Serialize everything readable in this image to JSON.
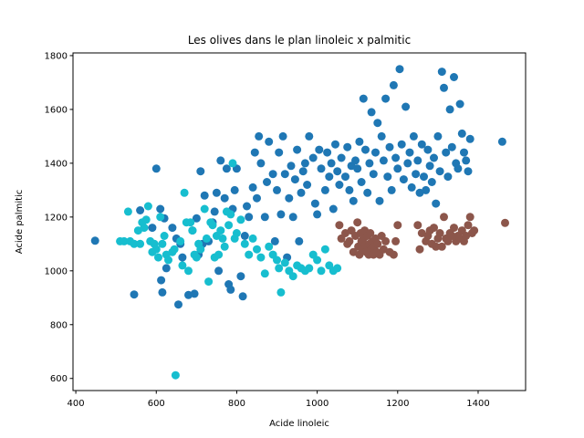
{
  "chart_data": {
    "type": "scatter",
    "title": "Les olives dans le plan linoleic x palmitic",
    "xlabel": "Acide linoleic",
    "ylabel": "Acide palmitic",
    "xlim": [
      393,
      1518
    ],
    "ylim": [
      555,
      1810
    ],
    "xticks": [
      400,
      600,
      800,
      1000,
      1200,
      1400
    ],
    "yticks": [
      600,
      800,
      1000,
      1200,
      1400,
      1600,
      1800
    ],
    "grid": false,
    "legend": "none",
    "series": [
      {
        "color": "#1f77b4",
        "points": [
          [
            448,
            1112
          ],
          [
            545,
            912
          ],
          [
            560,
            1225
          ],
          [
            590,
            1160
          ],
          [
            600,
            1380
          ],
          [
            610,
            1230
          ],
          [
            612,
            965
          ],
          [
            615,
            920
          ],
          [
            620,
            1195
          ],
          [
            625,
            1010
          ],
          [
            640,
            1160
          ],
          [
            650,
            1120
          ],
          [
            655,
            875
          ],
          [
            660,
            1100
          ],
          [
            665,
            1050
          ],
          [
            680,
            910
          ],
          [
            690,
            1150
          ],
          [
            695,
            915
          ],
          [
            700,
            1195
          ],
          [
            705,
            1060
          ],
          [
            710,
            1370
          ],
          [
            715,
            1100
          ],
          [
            720,
            1280
          ],
          [
            730,
            1110
          ],
          [
            740,
            1180
          ],
          [
            745,
            1220
          ],
          [
            750,
            1290
          ],
          [
            755,
            1000
          ],
          [
            760,
            1410
          ],
          [
            770,
            1270
          ],
          [
            775,
            1380
          ],
          [
            780,
            950
          ],
          [
            785,
            930
          ],
          [
            790,
            1230
          ],
          [
            795,
            1300
          ],
          [
            800,
            1380
          ],
          [
            810,
            980
          ],
          [
            815,
            905
          ],
          [
            820,
            1130
          ],
          [
            825,
            1240
          ],
          [
            830,
            1200
          ],
          [
            840,
            1310
          ],
          [
            845,
            1440
          ],
          [
            850,
            1270
          ],
          [
            855,
            1500
          ],
          [
            860,
            1400
          ],
          [
            870,
            1200
          ],
          [
            875,
            1330
          ],
          [
            880,
            1480
          ],
          [
            890,
            1360
          ],
          [
            895,
            1110
          ],
          [
            900,
            1300
          ],
          [
            905,
            1440
          ],
          [
            910,
            1210
          ],
          [
            915,
            1500
          ],
          [
            920,
            1360
          ],
          [
            925,
            1050
          ],
          [
            930,
            1270
          ],
          [
            935,
            1390
          ],
          [
            940,
            1200
          ],
          [
            945,
            1340
          ],
          [
            950,
            1450
          ],
          [
            955,
            1110
          ],
          [
            960,
            1290
          ],
          [
            965,
            1370
          ],
          [
            970,
            1400
          ],
          [
            975,
            1320
          ],
          [
            980,
            1500
          ],
          [
            990,
            1420
          ],
          [
            995,
            1250
          ],
          [
            1000,
            1210
          ],
          [
            1005,
            1450
          ],
          [
            1010,
            1380
          ],
          [
            1020,
            1300
          ],
          [
            1025,
            1440
          ],
          [
            1030,
            1350
          ],
          [
            1035,
            1400
          ],
          [
            1040,
            1230
          ],
          [
            1045,
            1470
          ],
          [
            1050,
            1370
          ],
          [
            1055,
            1320
          ],
          [
            1060,
            1420
          ],
          [
            1070,
            1350
          ],
          [
            1075,
            1460
          ],
          [
            1080,
            1300
          ],
          [
            1085,
            1390
          ],
          [
            1090,
            1260
          ],
          [
            1095,
            1410
          ],
          [
            1100,
            1380
          ],
          [
            1105,
            1480
          ],
          [
            1110,
            1330
          ],
          [
            1115,
            1640
          ],
          [
            1120,
            1450
          ],
          [
            1125,
            1290
          ],
          [
            1130,
            1400
          ],
          [
            1135,
            1590
          ],
          [
            1140,
            1360
          ],
          [
            1145,
            1440
          ],
          [
            1150,
            1550
          ],
          [
            1155,
            1260
          ],
          [
            1160,
            1500
          ],
          [
            1165,
            1410
          ],
          [
            1170,
            1640
          ],
          [
            1175,
            1350
          ],
          [
            1180,
            1460
          ],
          [
            1185,
            1300
          ],
          [
            1190,
            1690
          ],
          [
            1195,
            1420
          ],
          [
            1200,
            1380
          ],
          [
            1205,
            1750
          ],
          [
            1210,
            1470
          ],
          [
            1215,
            1340
          ],
          [
            1220,
            1610
          ],
          [
            1225,
            1400
          ],
          [
            1230,
            1440
          ],
          [
            1235,
            1310
          ],
          [
            1240,
            1500
          ],
          [
            1245,
            1360
          ],
          [
            1250,
            1410
          ],
          [
            1255,
            1290
          ],
          [
            1260,
            1470
          ],
          [
            1265,
            1350
          ],
          [
            1270,
            1300
          ],
          [
            1275,
            1450
          ],
          [
            1280,
            1390
          ],
          [
            1285,
            1330
          ],
          [
            1290,
            1420
          ],
          [
            1295,
            1250
          ],
          [
            1300,
            1500
          ],
          [
            1305,
            1370
          ],
          [
            1310,
            1740
          ],
          [
            1315,
            1680
          ],
          [
            1320,
            1440
          ],
          [
            1325,
            1350
          ],
          [
            1330,
            1600
          ],
          [
            1335,
            1460
          ],
          [
            1340,
            1720
          ],
          [
            1345,
            1400
          ],
          [
            1350,
            1380
          ],
          [
            1355,
            1620
          ],
          [
            1360,
            1510
          ],
          [
            1365,
            1440
          ],
          [
            1370,
            1410
          ],
          [
            1375,
            1370
          ],
          [
            1380,
            1490
          ],
          [
            1460,
            1480
          ]
        ]
      },
      {
        "color": "#17becf",
        "points": [
          [
            648,
            612
          ],
          [
            510,
            1110
          ],
          [
            520,
            1110
          ],
          [
            530,
            1220
          ],
          [
            535,
            1110
          ],
          [
            545,
            1100
          ],
          [
            555,
            1150
          ],
          [
            560,
            1100
          ],
          [
            565,
            1180
          ],
          [
            570,
            1160
          ],
          [
            575,
            1190
          ],
          [
            580,
            1240
          ],
          [
            585,
            1110
          ],
          [
            590,
            1070
          ],
          [
            595,
            1100
          ],
          [
            600,
            1080
          ],
          [
            605,
            1050
          ],
          [
            610,
            1200
          ],
          [
            615,
            1100
          ],
          [
            620,
            1130
          ],
          [
            625,
            1060
          ],
          [
            630,
            1040
          ],
          [
            640,
            1070
          ],
          [
            645,
            1080
          ],
          [
            660,
            1110
          ],
          [
            665,
            1020
          ],
          [
            670,
            1290
          ],
          [
            675,
            1180
          ],
          [
            680,
            1000
          ],
          [
            685,
            1180
          ],
          [
            690,
            1150
          ],
          [
            695,
            1060
          ],
          [
            700,
            1050
          ],
          [
            705,
            1100
          ],
          [
            710,
            1080
          ],
          [
            720,
            1230
          ],
          [
            725,
            1120
          ],
          [
            730,
            960
          ],
          [
            735,
            1180
          ],
          [
            740,
            1170
          ],
          [
            745,
            1050
          ],
          [
            750,
            1130
          ],
          [
            755,
            1060
          ],
          [
            760,
            1150
          ],
          [
            765,
            1120
          ],
          [
            770,
            1090
          ],
          [
            775,
            1220
          ],
          [
            780,
            1170
          ],
          [
            785,
            1210
          ],
          [
            790,
            1400
          ],
          [
            795,
            1120
          ],
          [
            800,
            1140
          ],
          [
            810,
            1190
          ],
          [
            820,
            1100
          ],
          [
            830,
            1060
          ],
          [
            840,
            1120
          ],
          [
            850,
            1080
          ],
          [
            860,
            1050
          ],
          [
            870,
            990
          ],
          [
            880,
            1090
          ],
          [
            890,
            1060
          ],
          [
            900,
            1040
          ],
          [
            905,
            1010
          ],
          [
            910,
            920
          ],
          [
            920,
            1030
          ],
          [
            930,
            1000
          ],
          [
            940,
            980
          ],
          [
            950,
            1020
          ],
          [
            960,
            1010
          ],
          [
            970,
            1000
          ],
          [
            980,
            1010
          ],
          [
            990,
            1060
          ],
          [
            1000,
            1040
          ],
          [
            1010,
            1000
          ],
          [
            1020,
            1080
          ],
          [
            1030,
            1020
          ],
          [
            1040,
            1000
          ],
          [
            1050,
            1010
          ]
        ]
      },
      {
        "color": "#8c564b",
        "points": [
          [
            1055,
            1170
          ],
          [
            1060,
            1120
          ],
          [
            1070,
            1140
          ],
          [
            1075,
            1100
          ],
          [
            1080,
            1110
          ],
          [
            1085,
            1150
          ],
          [
            1090,
            1070
          ],
          [
            1095,
            1130
          ],
          [
            1100,
            1180
          ],
          [
            1102,
            1090
          ],
          [
            1105,
            1060
          ],
          [
            1108,
            1140
          ],
          [
            1110,
            1110
          ],
          [
            1112,
            1080
          ],
          [
            1115,
            1120
          ],
          [
            1118,
            1150
          ],
          [
            1120,
            1095
          ],
          [
            1122,
            1070
          ],
          [
            1125,
            1130
          ],
          [
            1128,
            1060
          ],
          [
            1130,
            1100
          ],
          [
            1132,
            1140
          ],
          [
            1135,
            1080
          ],
          [
            1138,
            1110
          ],
          [
            1140,
            1060
          ],
          [
            1142,
            1090
          ],
          [
            1145,
            1120
          ],
          [
            1148,
            1070
          ],
          [
            1150,
            1100
          ],
          [
            1155,
            1060
          ],
          [
            1160,
            1130
          ],
          [
            1165,
            1080
          ],
          [
            1170,
            1110
          ],
          [
            1180,
            1070
          ],
          [
            1190,
            1060
          ],
          [
            1195,
            1110
          ],
          [
            1200,
            1170
          ],
          [
            1250,
            1170
          ],
          [
            1255,
            1080
          ],
          [
            1260,
            1140
          ],
          [
            1270,
            1110
          ],
          [
            1275,
            1130
          ],
          [
            1280,
            1150
          ],
          [
            1285,
            1100
          ],
          [
            1290,
            1160
          ],
          [
            1295,
            1090
          ],
          [
            1300,
            1120
          ],
          [
            1305,
            1140
          ],
          [
            1310,
            1090
          ],
          [
            1315,
            1200
          ],
          [
            1320,
            1120
          ],
          [
            1325,
            1110
          ],
          [
            1330,
            1140
          ],
          [
            1335,
            1130
          ],
          [
            1340,
            1160
          ],
          [
            1345,
            1110
          ],
          [
            1350,
            1130
          ],
          [
            1355,
            1120
          ],
          [
            1360,
            1150
          ],
          [
            1365,
            1110
          ],
          [
            1370,
            1130
          ],
          [
            1375,
            1170
          ],
          [
            1380,
            1200
          ],
          [
            1385,
            1140
          ],
          [
            1390,
            1150
          ],
          [
            1467,
            1178
          ]
        ]
      }
    ]
  }
}
